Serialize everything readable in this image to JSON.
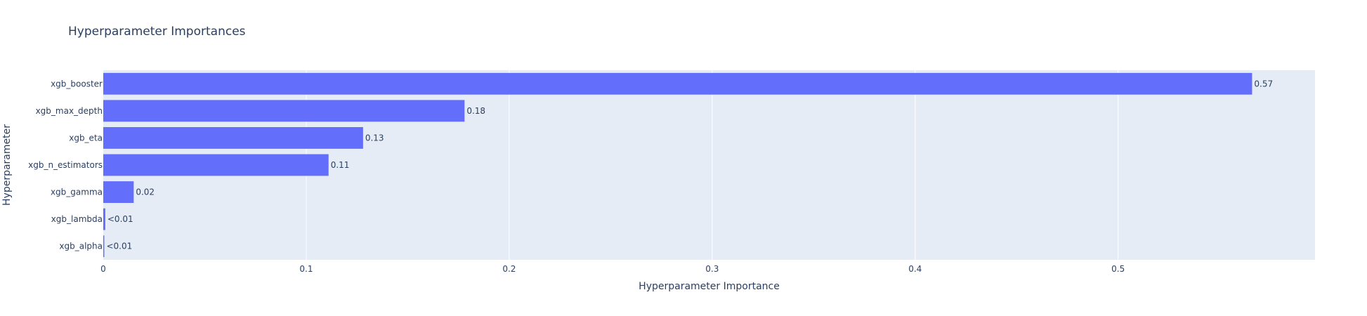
{
  "chart_data": {
    "type": "bar",
    "orientation": "horizontal",
    "title": "Hyperparameter Importances",
    "xlabel": "Hyperparameter Importance",
    "ylabel": "Hyperparameter",
    "xlim": [
      0,
      0.597
    ],
    "x_ticks": [
      "0",
      "0.1",
      "0.2",
      "0.3",
      "0.4",
      "0.5"
    ],
    "grid": true,
    "bar_color": "#636efa",
    "plot_bg_color": "#e5ecf6",
    "categories": [
      "xgb_booster",
      "xgb_max_depth",
      "xgb_eta",
      "xgb_n_estimators",
      "xgb_gamma",
      "xgb_lambda",
      "xgb_alpha"
    ],
    "values": [
      0.566,
      0.178,
      0.128,
      0.111,
      0.015,
      0.001,
      0.0005
    ],
    "labels": [
      "0.57",
      "0.18",
      "0.13",
      "0.11",
      "0.02",
      "<0.01",
      "<0.01"
    ]
  }
}
